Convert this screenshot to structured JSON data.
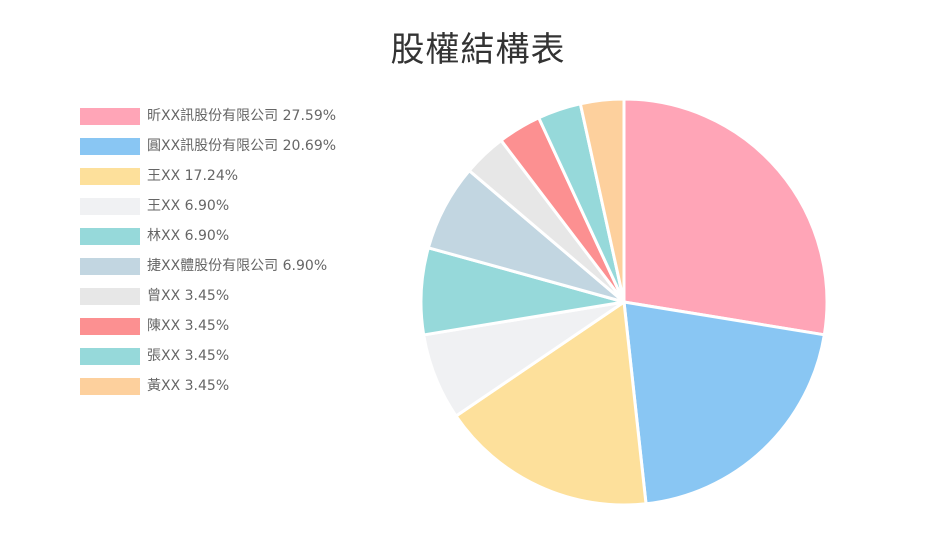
{
  "chart_data": {
    "type": "pie",
    "title": "股權結構表",
    "legend_position": "left",
    "slices": [
      {
        "label": "昕XX訊股份有限公司",
        "value": 27.59,
        "value_label": "27.59%",
        "color": "#FFA5B7"
      },
      {
        "label": "圓XX訊股份有限公司",
        "value": 20.69,
        "value_label": "20.69%",
        "color": "#89C6F3"
      },
      {
        "label": "王XX",
        "value": 17.24,
        "value_label": "17.24%",
        "color": "#FDE09B"
      },
      {
        "label": "王XX",
        "value": 6.9,
        "value_label": "6.90%",
        "color": "#F0F1F3"
      },
      {
        "label": "林XX",
        "value": 6.9,
        "value_label": "6.90%",
        "color": "#96D9DA"
      },
      {
        "label": "捷XX體股份有限公司",
        "value": 6.9,
        "value_label": "6.90%",
        "color": "#C2D6E1"
      },
      {
        "label": "曾XX",
        "value": 3.45,
        "value_label": "3.45%",
        "color": "#E7E7E7"
      },
      {
        "label": "陳XX",
        "value": 3.45,
        "value_label": "3.45%",
        "color": "#FC9091"
      },
      {
        "label": "張XX",
        "value": 3.45,
        "value_label": "3.45%",
        "color": "#96D9DA"
      },
      {
        "label": "黃XX",
        "value": 3.45,
        "value_label": "3.45%",
        "color": "#FDD09D"
      }
    ]
  }
}
